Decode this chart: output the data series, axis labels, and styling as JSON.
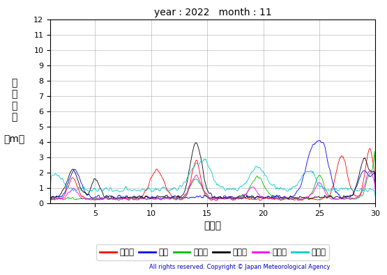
{
  "title": "year : 2022   month : 11",
  "xlabel": "（日）",
  "ylabel_lines": [
    "有",
    "義",
    "波",
    "高",
    "",
    "（m）"
  ],
  "xlim": [
    1,
    30
  ],
  "ylim": [
    0,
    12
  ],
  "yticks": [
    0,
    1,
    2,
    3,
    4,
    5,
    6,
    7,
    8,
    9,
    10,
    11,
    12
  ],
  "xticks": [
    5,
    10,
    15,
    20,
    25,
    30
  ],
  "copyright": "All rights reserved. Copyright © Japan Meteorological Agency",
  "legend": [
    {
      "label": "上ノ国",
      "color": "#ff0000"
    },
    {
      "label": "唐桑",
      "color": "#0000ff"
    },
    {
      "label": "石庭崎",
      "color": "#00bb00"
    },
    {
      "label": "経ヶ岸",
      "color": "#000000"
    },
    {
      "label": "生月島",
      "color": "#ff00ff"
    },
    {
      "label": "屋久島",
      "color": "#00cccc"
    }
  ],
  "n_points": 720,
  "n_days": 30,
  "figsize": [
    5.55,
    3.95
  ],
  "dpi": 100
}
